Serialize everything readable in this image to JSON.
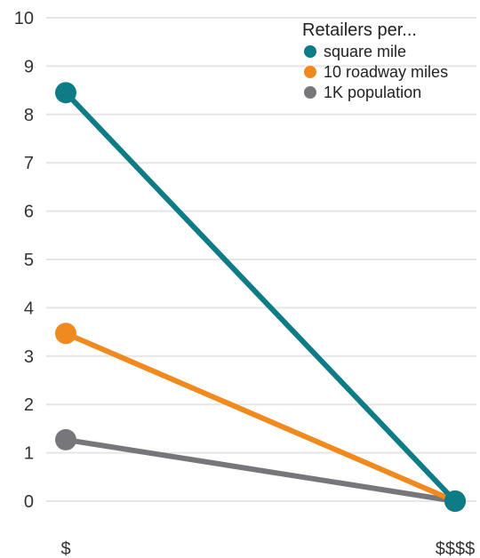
{
  "chart_data": {
    "type": "line",
    "categories": [
      "$",
      "$$$$"
    ],
    "ylim": [
      0,
      10
    ],
    "yticks": [
      0,
      1,
      2,
      3,
      4,
      5,
      6,
      7,
      8,
      9,
      10
    ],
    "grid": true,
    "legend": {
      "title": "Retailers per...",
      "placement": "top-right"
    },
    "series": [
      {
        "name": "square mile",
        "values": [
          8.45,
          0
        ],
        "color": "#0e7c86"
      },
      {
        "name": "10 roadway miles",
        "values": [
          3.47,
          0
        ],
        "color": "#f0891e"
      },
      {
        "name": "1K population",
        "values": [
          1.27,
          0
        ],
        "color": "#77777b"
      }
    ]
  }
}
